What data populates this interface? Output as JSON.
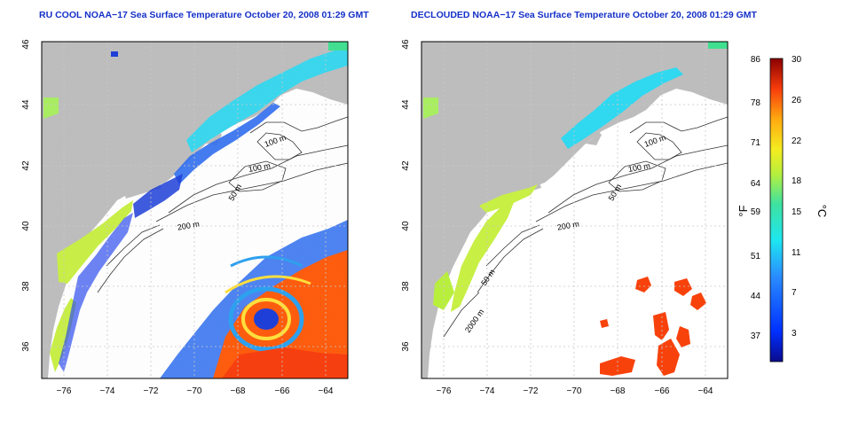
{
  "left_panel": {
    "title": "RU COOL NOAA−17 Sea Surface Temperature October 20, 2008 01:29 GMT"
  },
  "right_panel": {
    "title": "DECLOUDED NOAA−17 Sea Surface Temperature October 20, 2008 01:29 GMT"
  },
  "axes": {
    "x_ticks": [
      "−76",
      "−74",
      "−72",
      "−70",
      "−68",
      "−66",
      "−64"
    ],
    "y_ticks": [
      "36",
      "38",
      "40",
      "42",
      "44",
      "46"
    ]
  },
  "contour_labels": {
    "m100a": "100 m",
    "m100b": "100 m",
    "m50": "50 m",
    "m200": "200 m",
    "m2000": "2000 m"
  },
  "colorbar": {
    "f_ticks": [
      "86",
      "78",
      "71",
      "64",
      "59",
      "51",
      "44",
      "37"
    ],
    "c_ticks": [
      "30",
      "26",
      "22",
      "18",
      "15",
      "11",
      "7",
      "3"
    ],
    "f_label": "°F",
    "c_label": "°C"
  },
  "colors": {
    "land": "#bdbdbd",
    "ocean": "#ffffff",
    "title": "#1530c8",
    "grid": "#c8c8c8"
  }
}
